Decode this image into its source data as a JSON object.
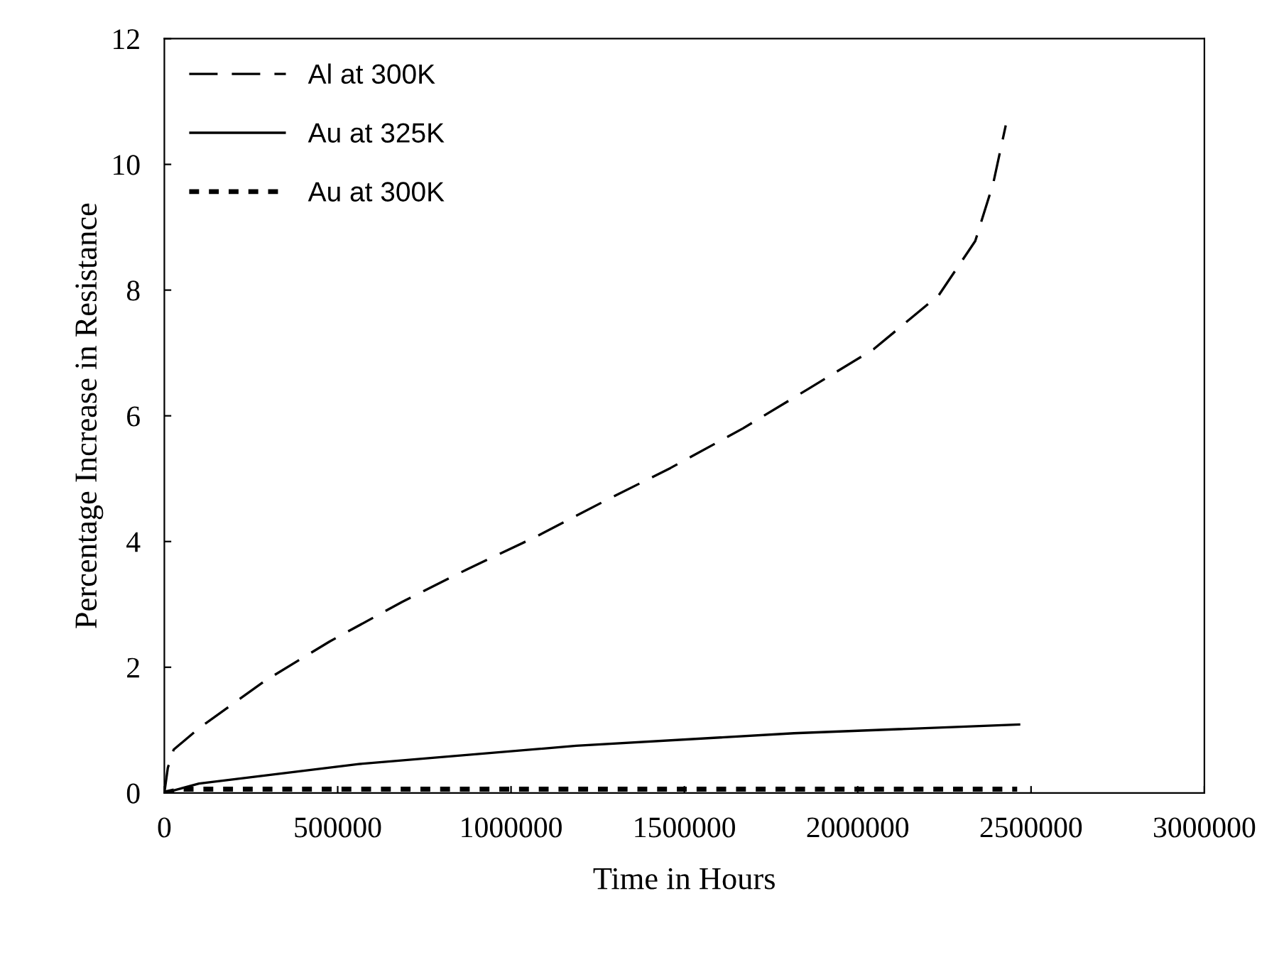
{
  "chart_data": {
    "type": "line",
    "xlabel": "Time in Hours",
    "ylabel": "Percentage Increase in Resistance",
    "xlim": [
      0,
      3000000
    ],
    "ylim": [
      0,
      12
    ],
    "xticks": [
      0,
      500000,
      1000000,
      1500000,
      2000000,
      2500000,
      3000000
    ],
    "yticks": [
      0,
      2,
      4,
      6,
      8,
      10,
      12
    ],
    "grid": false,
    "legend": "top left",
    "series": [
      {
        "name": "Al at 300K",
        "color": "#000000",
        "line_style": "dashed",
        "x": [
          0,
          10000,
          27000,
          100000,
          289000,
          477000,
          686000,
          874000,
          1073000,
          1272000,
          1460000,
          1669000,
          1858000,
          2046000,
          2234000,
          2339000,
          2391000,
          2427000
        ],
        "values": [
          0,
          0.4,
          0.69,
          1.03,
          1.78,
          2.41,
          3.04,
          3.56,
          4.08,
          4.65,
          5.17,
          5.8,
          6.43,
          7.06,
          7.92,
          8.78,
          9.7,
          10.62
        ]
      },
      {
        "name": "Au at 325K",
        "color": "#000000",
        "line_style": "solid",
        "x": [
          0,
          100000,
          561000,
          1188000,
          1816000,
          2469000
        ],
        "values": [
          0,
          0.15,
          0.46,
          0.75,
          0.95,
          1.09
        ]
      },
      {
        "name": "Au at 300K",
        "color": "#000000",
        "line_style": "dotted",
        "x": [
          0,
          50000,
          2460000
        ],
        "values": [
          0,
          0.06,
          0.06
        ]
      }
    ]
  }
}
